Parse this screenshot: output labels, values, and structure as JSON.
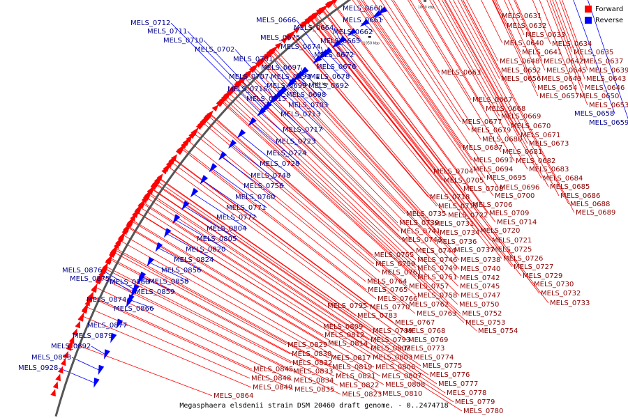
{
  "caption": "Megasphaera elsdenii strain DSM 20460 draft genome. - 0..2474718",
  "legend": [
    {
      "label": "Forward",
      "color": "#ff0000"
    },
    {
      "label": "Reverse",
      "color": "#0000ff"
    }
  ],
  "colors": {
    "forward": "#ff0000",
    "reverse": "#0000ff",
    "backbone": "#555555"
  },
  "ticks": [
    "750 kbp",
    "800 kbp",
    "850 kbp",
    "900 kbp",
    "950 kbp",
    "1000 kbp",
    "1050 kbp",
    "1100 kbp"
  ],
  "genes": [
    {
      "name": "MELS_0631",
      "strand": "forward"
    },
    {
      "name": "MELS_0632",
      "strand": "forward"
    },
    {
      "name": "MELS_0633",
      "strand": "forward"
    },
    {
      "name": "MELS_0634",
      "strand": "forward"
    },
    {
      "name": "MELS_0635",
      "strand": "forward"
    },
    {
      "name": "MELS_0637",
      "strand": "forward"
    },
    {
      "name": "MELS_0639",
      "strand": "forward"
    },
    {
      "name": "MELS_0640",
      "strand": "forward"
    },
    {
      "name": "MELS_0641",
      "strand": "forward"
    },
    {
      "name": "MELS_0642",
      "strand": "forward"
    },
    {
      "name": "MELS_0643",
      "strand": "forward"
    },
    {
      "name": "MELS_0645",
      "strand": "forward"
    },
    {
      "name": "MELS_0646",
      "strand": "forward"
    },
    {
      "name": "MELS_0648",
      "strand": "forward"
    },
    {
      "name": "MELS_0649",
      "strand": "forward"
    },
    {
      "name": "MELS_0650",
      "strand": "forward"
    },
    {
      "name": "MELS_0652",
      "strand": "forward"
    },
    {
      "name": "MELS_0653",
      "strand": "forward"
    },
    {
      "name": "MELS_0654",
      "strand": "forward"
    },
    {
      "name": "MELS_0656",
      "strand": "forward"
    },
    {
      "name": "MELS_0657",
      "strand": "forward"
    },
    {
      "name": "MELS_0658",
      "strand": "reverse"
    },
    {
      "name": "MELS_0659",
      "strand": "reverse"
    },
    {
      "name": "MELS_0663",
      "strand": "forward"
    },
    {
      "name": "MELS_0667",
      "strand": "forward"
    },
    {
      "name": "MELS_0668",
      "strand": "forward"
    },
    {
      "name": "MELS_0669",
      "strand": "forward"
    },
    {
      "name": "MELS_0670",
      "strand": "forward"
    },
    {
      "name": "MELS_0671",
      "strand": "forward"
    },
    {
      "name": "MELS_0673",
      "strand": "forward"
    },
    {
      "name": "MELS_0677",
      "strand": "forward"
    },
    {
      "name": "MELS_0679",
      "strand": "forward"
    },
    {
      "name": "MELS_0680",
      "strand": "forward"
    },
    {
      "name": "MELS_0681",
      "strand": "forward"
    },
    {
      "name": "MELS_0682",
      "strand": "forward"
    },
    {
      "name": "MELS_0683",
      "strand": "forward"
    },
    {
      "name": "MELS_0684",
      "strand": "forward"
    },
    {
      "name": "MELS_0685",
      "strand": "forward"
    },
    {
      "name": "MELS_0686",
      "strand": "forward"
    },
    {
      "name": "MELS_0687",
      "strand": "forward"
    },
    {
      "name": "MELS_0688",
      "strand": "forward"
    },
    {
      "name": "MELS_0689",
      "strand": "forward"
    },
    {
      "name": "MELS_0691",
      "strand": "forward"
    },
    {
      "name": "MELS_0694",
      "strand": "forward"
    },
    {
      "name": "MELS_0695",
      "strand": "forward"
    },
    {
      "name": "MELS_0696",
      "strand": "forward"
    },
    {
      "name": "MELS_0700",
      "strand": "forward"
    },
    {
      "name": "MELS_0704",
      "strand": "forward"
    },
    {
      "name": "MELS_0705",
      "strand": "forward"
    },
    {
      "name": "MELS_0706",
      "strand": "forward"
    },
    {
      "name": "MELS_0708",
      "strand": "forward"
    },
    {
      "name": "MELS_0709",
      "strand": "forward"
    },
    {
      "name": "MELS_0714",
      "strand": "forward"
    },
    {
      "name": "MELS_0718",
      "strand": "forward"
    },
    {
      "name": "MELS_0719",
      "strand": "forward"
    },
    {
      "name": "MELS_0720",
      "strand": "forward"
    },
    {
      "name": "MELS_0721",
      "strand": "forward"
    },
    {
      "name": "MELS_0722",
      "strand": "forward"
    },
    {
      "name": "MELS_0725",
      "strand": "forward"
    },
    {
      "name": "MELS_0726",
      "strand": "forward"
    },
    {
      "name": "MELS_0727",
      "strand": "forward"
    },
    {
      "name": "MELS_0729",
      "strand": "forward"
    },
    {
      "name": "MELS_0730",
      "strand": "forward"
    },
    {
      "name": "MELS_0731",
      "strand": "forward"
    },
    {
      "name": "MELS_0732",
      "strand": "forward"
    },
    {
      "name": "MELS_0733",
      "strand": "forward"
    },
    {
      "name": "MELS_0734",
      "strand": "forward"
    },
    {
      "name": "MELS_0735",
      "strand": "forward"
    },
    {
      "name": "MELS_0736",
      "strand": "forward"
    },
    {
      "name": "MELS_0737",
      "strand": "forward"
    },
    {
      "name": "MELS_0738",
      "strand": "forward"
    },
    {
      "name": "MELS_0739",
      "strand": "forward"
    },
    {
      "name": "MELS_0740",
      "strand": "forward"
    },
    {
      "name": "MELS_0741",
      "strand": "forward"
    },
    {
      "name": "MELS_0742",
      "strand": "forward"
    },
    {
      "name": "MELS_0743",
      "strand": "forward"
    },
    {
      "name": "MELS_0744",
      "strand": "forward"
    },
    {
      "name": "MELS_0745",
      "strand": "forward"
    },
    {
      "name": "MELS_0746",
      "strand": "forward"
    },
    {
      "name": "MELS_0747",
      "strand": "forward"
    },
    {
      "name": "MELS_0749",
      "strand": "forward"
    },
    {
      "name": "MELS_0750",
      "strand": "forward"
    },
    {
      "name": "MELS_0751",
      "strand": "forward"
    },
    {
      "name": "MELS_0752",
      "strand": "forward"
    },
    {
      "name": "MELS_0753",
      "strand": "forward"
    },
    {
      "name": "MELS_0754",
      "strand": "forward"
    },
    {
      "name": "MELS_0755",
      "strand": "forward"
    },
    {
      "name": "MELS_0757",
      "strand": "forward"
    },
    {
      "name": "MELS_0758",
      "strand": "forward"
    },
    {
      "name": "MELS_0759",
      "strand": "forward"
    },
    {
      "name": "MELS_0761",
      "strand": "forward"
    },
    {
      "name": "MELS_0762",
      "strand": "forward"
    },
    {
      "name": "MELS_0763",
      "strand": "forward"
    },
    {
      "name": "MELS_0764",
      "strand": "forward"
    },
    {
      "name": "MELS_0765",
      "strand": "forward"
    },
    {
      "name": "MELS_0766",
      "strand": "forward"
    },
    {
      "name": "MELS_0767",
      "strand": "forward"
    },
    {
      "name": "MELS_0768",
      "strand": "forward"
    },
    {
      "name": "MELS_0769",
      "strand": "forward"
    },
    {
      "name": "MELS_0770",
      "strand": "forward"
    },
    {
      "name": "MELS_0773",
      "strand": "forward"
    },
    {
      "name": "MELS_0774",
      "strand": "forward"
    },
    {
      "name": "MELS_0775",
      "strand": "forward"
    },
    {
      "name": "MELS_0776",
      "strand": "forward"
    },
    {
      "name": "MELS_0777",
      "strand": "forward"
    },
    {
      "name": "MELS_0778",
      "strand": "forward"
    },
    {
      "name": "MELS_0779",
      "strand": "forward"
    },
    {
      "name": "MELS_0780",
      "strand": "forward"
    },
    {
      "name": "MELS_0783",
      "strand": "forward"
    },
    {
      "name": "MELS_0789",
      "strand": "forward"
    },
    {
      "name": "MELS_0793",
      "strand": "forward"
    },
    {
      "name": "MELS_0795",
      "strand": "forward"
    },
    {
      "name": "MELS_0802",
      "strand": "forward"
    },
    {
      "name": "MELS_0803",
      "strand": "forward"
    },
    {
      "name": "MELS_0806",
      "strand": "forward"
    },
    {
      "name": "MELS_0807",
      "strand": "forward"
    },
    {
      "name": "MELS_0808",
      "strand": "forward"
    },
    {
      "name": "MELS_0809",
      "strand": "forward"
    },
    {
      "name": "MELS_0810",
      "strand": "forward"
    },
    {
      "name": "MELS_0812",
      "strand": "forward"
    },
    {
      "name": "MELS_0814",
      "strand": "forward"
    },
    {
      "name": "MELS_0817",
      "strand": "forward"
    },
    {
      "name": "MELS_0819",
      "strand": "forward"
    },
    {
      "name": "MELS_0821",
      "strand": "forward"
    },
    {
      "name": "MELS_0822",
      "strand": "forward"
    },
    {
      "name": "MELS_0823",
      "strand": "forward"
    },
    {
      "name": "MELS_0829",
      "strand": "forward"
    },
    {
      "name": "MELS_0830",
      "strand": "forward"
    },
    {
      "name": "MELS_0832",
      "strand": "forward"
    },
    {
      "name": "MELS_0833",
      "strand": "forward"
    },
    {
      "name": "MELS_0834",
      "strand": "forward"
    },
    {
      "name": "MELS_0835",
      "strand": "forward"
    },
    {
      "name": "MELS_0845",
      "strand": "forward"
    },
    {
      "name": "MELS_0848",
      "strand": "forward"
    },
    {
      "name": "MELS_0849",
      "strand": "forward"
    },
    {
      "name": "MELS_0864",
      "strand": "forward"
    },
    {
      "name": "MELS_0660",
      "strand": "reverse"
    },
    {
      "name": "MELS_0661",
      "strand": "reverse"
    },
    {
      "name": "MELS_0662",
      "strand": "reverse"
    },
    {
      "name": "MELS_0664",
      "strand": "reverse"
    },
    {
      "name": "MELS_0665",
      "strand": "reverse"
    },
    {
      "name": "MELS_0666",
      "strand": "reverse"
    },
    {
      "name": "MELS_0672",
      "strand": "reverse"
    },
    {
      "name": "MELS_0674",
      "strand": "reverse"
    },
    {
      "name": "MELS_0675",
      "strand": "reverse"
    },
    {
      "name": "MELS_0676",
      "strand": "reverse"
    },
    {
      "name": "MELS_0678",
      "strand": "reverse"
    },
    {
      "name": "MELS_0692",
      "strand": "reverse"
    },
    {
      "name": "MELS_0693",
      "strand": "reverse"
    },
    {
      "name": "MELS_0697",
      "strand": "reverse"
    },
    {
      "name": "MELS_0698",
      "strand": "reverse"
    },
    {
      "name": "MELS_0699",
      "strand": "reverse"
    },
    {
      "name": "MELS_0701",
      "strand": "reverse"
    },
    {
      "name": "MELS_0702",
      "strand": "reverse"
    },
    {
      "name": "MELS_0703",
      "strand": "reverse"
    },
    {
      "name": "MELS_0707",
      "strand": "reverse"
    },
    {
      "name": "MELS_0710",
      "strand": "reverse"
    },
    {
      "name": "MELS_0711",
      "strand": "reverse"
    },
    {
      "name": "MELS_0712",
      "strand": "reverse"
    },
    {
      "name": "MELS_0713",
      "strand": "reverse"
    },
    {
      "name": "MELS_0715",
      "strand": "reverse"
    },
    {
      "name": "MELS_0716",
      "strand": "reverse"
    },
    {
      "name": "MELS_0717",
      "strand": "reverse"
    },
    {
      "name": "MELS_0723",
      "strand": "reverse"
    },
    {
      "name": "MELS_0724",
      "strand": "reverse"
    },
    {
      "name": "MELS_0728",
      "strand": "reverse"
    },
    {
      "name": "MELS_0748",
      "strand": "reverse"
    },
    {
      "name": "MELS_0756",
      "strand": "reverse"
    },
    {
      "name": "MELS_0760",
      "strand": "reverse"
    },
    {
      "name": "MELS_0771",
      "strand": "reverse"
    },
    {
      "name": "MELS_0772",
      "strand": "reverse"
    },
    {
      "name": "MELS_0804",
      "strand": "reverse"
    },
    {
      "name": "MELS_0805",
      "strand": "reverse"
    },
    {
      "name": "MELS_0820",
      "strand": "reverse"
    },
    {
      "name": "MELS_0824",
      "strand": "reverse"
    },
    {
      "name": "MELS_0856",
      "strand": "reverse"
    },
    {
      "name": "MELS_0858",
      "strand": "reverse"
    },
    {
      "name": "MELS_0859",
      "strand": "reverse"
    },
    {
      "name": "MELS_0860",
      "strand": "reverse"
    },
    {
      "name": "MELS_0866",
      "strand": "reverse"
    },
    {
      "name": "MELS_0874",
      "strand": "reverse"
    },
    {
      "name": "MELS_0875",
      "strand": "reverse"
    },
    {
      "name": "MELS_0876",
      "strand": "reverse"
    },
    {
      "name": "MELS_0877",
      "strand": "reverse"
    },
    {
      "name": "MELS_0879",
      "strand": "reverse"
    },
    {
      "name": "MELS_0892",
      "strand": "reverse"
    },
    {
      "name": "MELS_0893",
      "strand": "reverse"
    },
    {
      "name": "MELS_0928",
      "strand": "reverse"
    }
  ]
}
